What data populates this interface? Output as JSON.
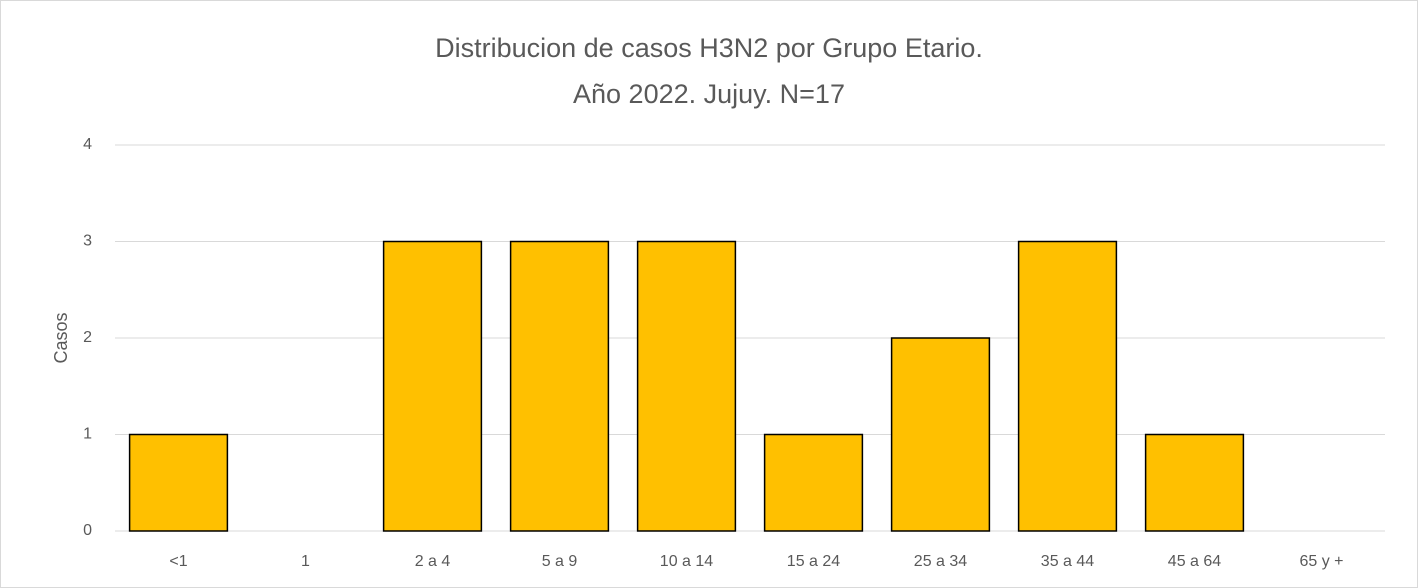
{
  "chart_data": {
    "type": "bar",
    "title": [
      "Distribucion de casos H3N2 por Grupo Etario.",
      "Año 2022. Jujuy. N=17"
    ],
    "ylabel": "Casos",
    "categories": [
      "<1",
      "1",
      "2 a 4",
      "5 a 9",
      "10 a 14",
      "15 a 24",
      "25 a 34",
      "35 a 44",
      "45 a 64",
      "65 y +"
    ],
    "values": [
      1,
      0,
      3,
      3,
      3,
      1,
      2,
      3,
      1,
      0
    ],
    "color": "#ffc000",
    "ylim": [
      0,
      4
    ],
    "yticks": [
      0,
      1,
      2,
      3,
      4
    ],
    "grid": true
  }
}
